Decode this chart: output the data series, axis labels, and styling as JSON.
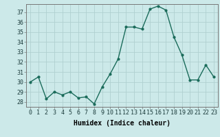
{
  "x": [
    0,
    1,
    2,
    3,
    4,
    5,
    6,
    7,
    8,
    9,
    10,
    11,
    12,
    13,
    14,
    15,
    16,
    17,
    18,
    19,
    20,
    21,
    22,
    23
  ],
  "y": [
    30.0,
    30.5,
    28.3,
    29.0,
    28.7,
    29.0,
    28.4,
    28.5,
    27.8,
    29.5,
    30.8,
    32.3,
    35.5,
    35.5,
    35.3,
    37.3,
    37.6,
    37.2,
    34.5,
    32.7,
    30.2,
    30.2,
    31.7,
    30.5
  ],
  "line_color": "#1a6b5a",
  "marker": "o",
  "marker_size": 2,
  "bg_color": "#cce9e9",
  "grid_color": "#b0d0d0",
  "xlabel": "Humidex (Indice chaleur)",
  "ylim": [
    27.5,
    37.8
  ],
  "xlim": [
    -0.5,
    23.5
  ],
  "yticks": [
    28,
    29,
    30,
    31,
    32,
    33,
    34,
    35,
    36,
    37
  ],
  "xticks": [
    0,
    1,
    2,
    3,
    4,
    5,
    6,
    7,
    8,
    9,
    10,
    11,
    12,
    13,
    14,
    15,
    16,
    17,
    18,
    19,
    20,
    21,
    22,
    23
  ],
  "xlabel_fontsize": 7,
  "tick_fontsize": 6,
  "linewidth": 1.0
}
